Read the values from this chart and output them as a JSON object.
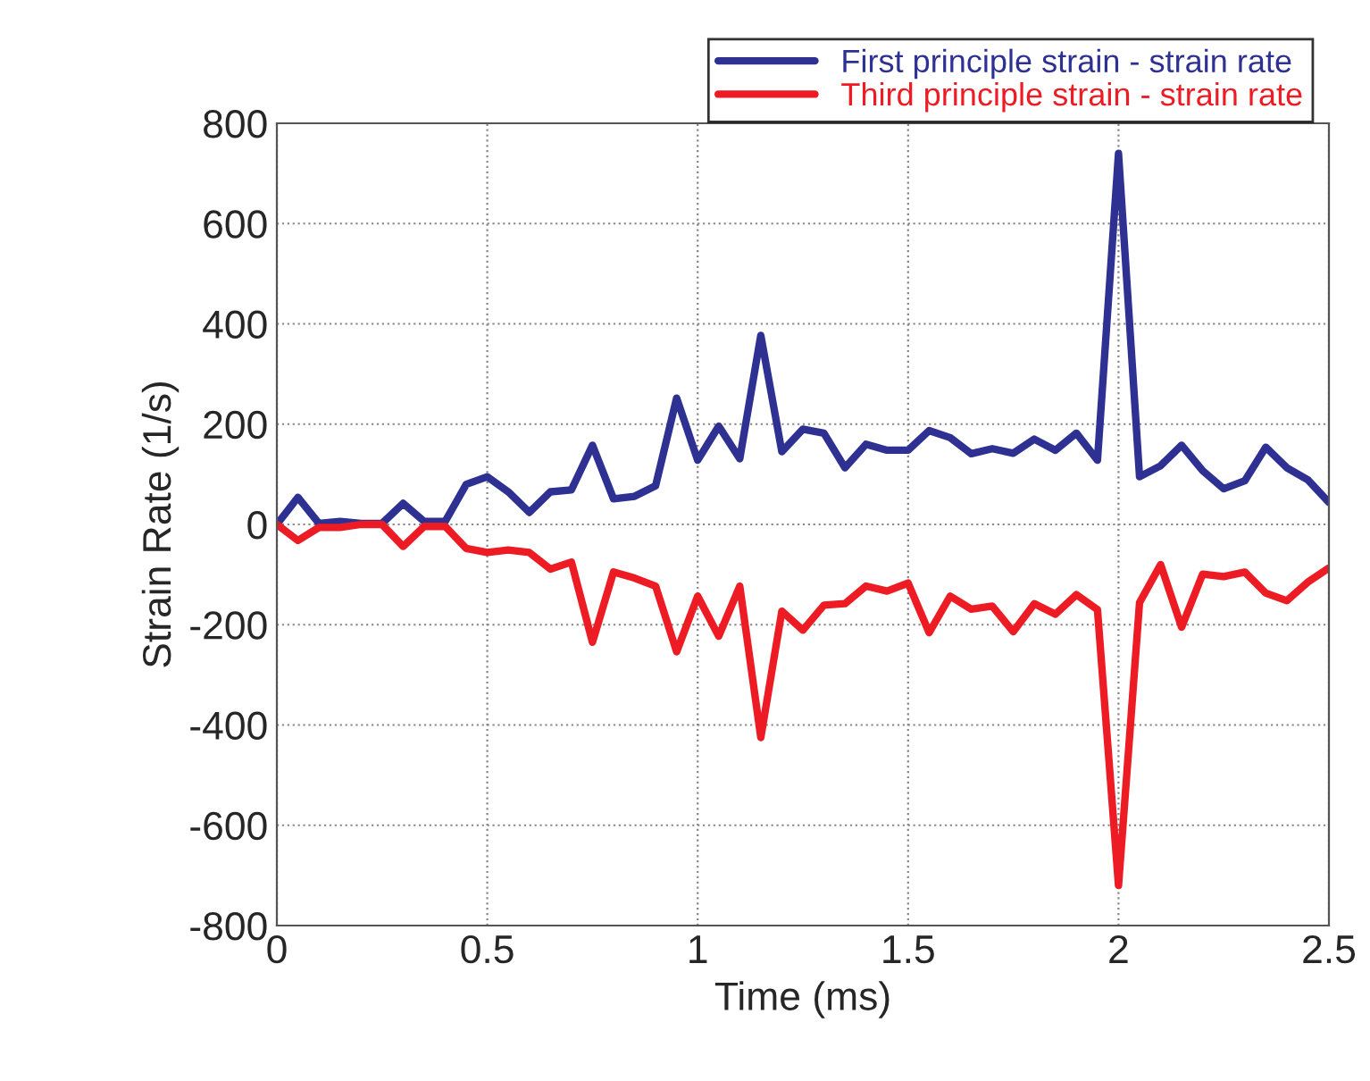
{
  "chart_data": {
    "type": "line",
    "xlabel": "Time (ms)",
    "ylabel": "Strain Rate (1/s)",
    "x": [
      0,
      0.05,
      0.1,
      0.15,
      0.2,
      0.25,
      0.3,
      0.35,
      0.4,
      0.45,
      0.5,
      0.55,
      0.6,
      0.65,
      0.7,
      0.75,
      0.8,
      0.85,
      0.9,
      0.95,
      1,
      1.05,
      1.1,
      1.15,
      1.2,
      1.25,
      1.3,
      1.35,
      1.4,
      1.45,
      1.5,
      1.55,
      1.6,
      1.65,
      1.7,
      1.75,
      1.8,
      1.85,
      1.9,
      1.95,
      2,
      2.05,
      2.1,
      2.15,
      2.2,
      2.25,
      2.3,
      2.35,
      2.4,
      2.45,
      2.5
    ],
    "series": [
      {
        "name": "First principle strain - strain rate",
        "color": "#2e3192",
        "values": [
          0,
          54,
          2,
          6,
          2,
          2,
          42,
          6,
          6,
          80,
          95,
          65,
          24,
          65,
          69,
          158,
          51,
          56,
          77,
          252,
          128,
          196,
          131,
          377,
          145,
          190,
          182,
          113,
          160,
          148,
          148,
          187,
          173,
          141,
          151,
          142,
          170,
          148,
          182,
          128,
          740,
          95,
          117,
          158,
          107,
          71,
          87,
          154,
          113,
          89,
          44
        ]
      },
      {
        "name": "Third principle strain - strain rate",
        "color": "#ed1c24",
        "values": [
          0,
          -32,
          -6,
          -6,
          0,
          0,
          -44,
          -4,
          -4,
          -48,
          -56,
          -51,
          -56,
          -89,
          -75,
          -235,
          -95,
          -107,
          -123,
          -254,
          -143,
          -223,
          -123,
          -425,
          -173,
          -211,
          -161,
          -158,
          -123,
          -133,
          -117,
          -216,
          -143,
          -169,
          -163,
          -214,
          -158,
          -179,
          -140,
          -170,
          -720,
          -156,
          -80,
          -205,
          -99,
          -104,
          -95,
          -137,
          -152,
          -115,
          -87
        ]
      }
    ],
    "xlim": [
      0,
      2.5
    ],
    "xticks": [
      0,
      0.5,
      1,
      1.5,
      2,
      2.5
    ],
    "ylim": [
      -800,
      800
    ],
    "yticks": [
      -800,
      -600,
      -400,
      -200,
      0,
      200,
      400,
      600,
      800
    ],
    "grid": true,
    "legend": "top right",
    "line_style": "solid",
    "marker": "none"
  }
}
